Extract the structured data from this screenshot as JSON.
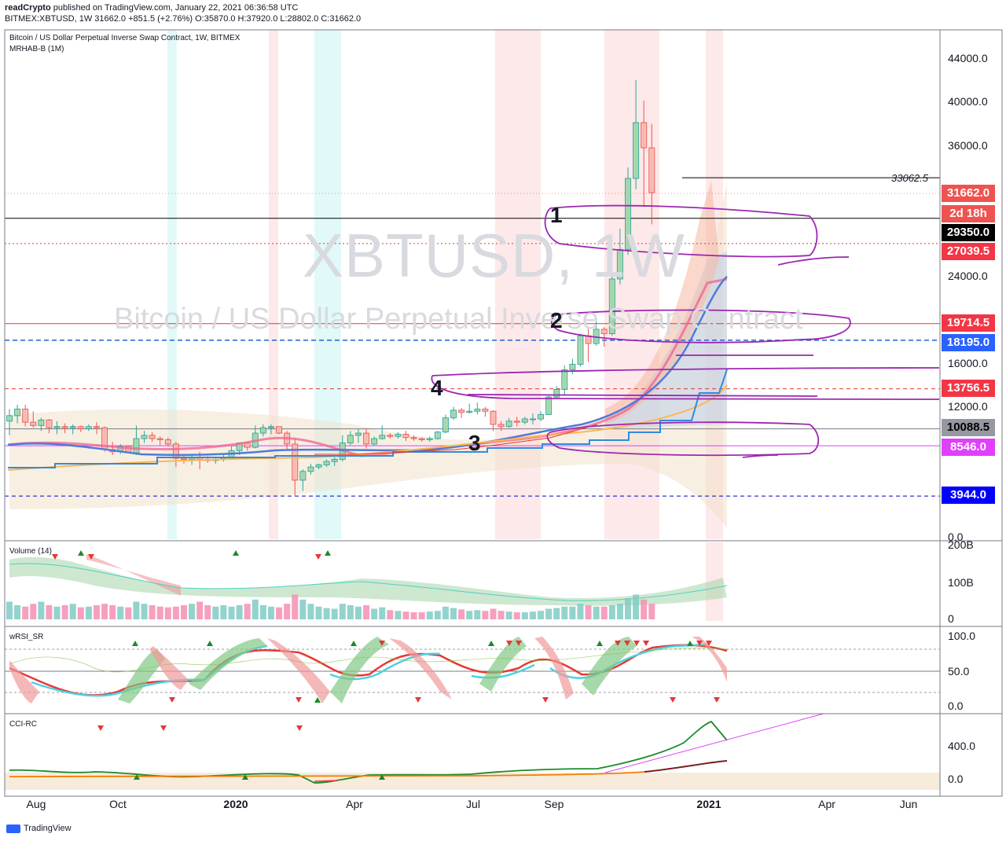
{
  "header": {
    "line1_author": "readCrypto",
    "line1_rest": " published on TradingView.com, January 22, 2021 06:36:58 UTC",
    "line2": "BITMEX:XBTUSD, 1W  31662.0  +851.5 (+2.76%)  O:35870.0  H:37920.0  L:28802.0  C:31662.0"
  },
  "chart_title": "Bitcoin / US Dollar Perpetual Inverse Swap Contract, 1W, BITMEX",
  "indicator_name": "MRHAB-B (1M)",
  "watermark": {
    "symbol": "XBTUSD, 1W",
    "description": "Bitcoin / US Dollar Perpetual Inverse Swap Contract"
  },
  "price_axis": {
    "ticks": [
      "44000.0",
      "40000.0",
      "36000.0",
      "24000.0",
      "16000.0",
      "12000.0",
      "0.0"
    ]
  },
  "price_tags": [
    {
      "text": "31662.0",
      "bg": "#ef5350",
      "fg": "#ffffff"
    },
    {
      "text": "2d 18h",
      "bg": "#ef5350",
      "fg": "#ffffff"
    },
    {
      "text": "29350.0",
      "bg": "#000000",
      "fg": "#ffffff"
    },
    {
      "text": "27039.5",
      "bg": "#f23645",
      "fg": "#ffffff"
    },
    {
      "text": "19714.5",
      "bg": "#f23645",
      "fg": "#ffffff"
    },
    {
      "text": "18195.0",
      "bg": "#2962ff",
      "fg": "#ffffff"
    },
    {
      "text": "13756.5",
      "bg": "#f23645",
      "fg": "#ffffff"
    },
    {
      "text": "10088.5",
      "bg": "#9598a1",
      "fg": "#000000"
    },
    {
      "text": "8546.0",
      "bg": "#e040fb",
      "fg": "#ffffff"
    },
    {
      "text": "3944.0",
      "bg": "#0000ff",
      "fg": "#ffffff"
    }
  ],
  "annotation_value": "33062.5",
  "zone_labels": [
    "1",
    "2",
    "3",
    "4"
  ],
  "volume_pane": {
    "title": "Volume (14)",
    "ticks": [
      "200B",
      "100B",
      "0"
    ]
  },
  "rsi_pane": {
    "title": "wRSI_SR",
    "ticks": [
      "100.0",
      "50.0",
      "0.0"
    ]
  },
  "cci_pane": {
    "title": "CCI-RC",
    "ticks": [
      "400.0",
      "0.0"
    ]
  },
  "time_axis": {
    "labels": [
      "Aug",
      "Oct",
      "2020",
      "Apr",
      "Jul",
      "Sep",
      "2021",
      "Apr",
      "Jun"
    ]
  },
  "footer": {
    "brand": "TradingView"
  },
  "colors": {
    "up": "#26a69a",
    "down": "#ef5350",
    "drawing": "#9c27b0"
  },
  "chart_data": {
    "type": "candlestick",
    "symbol": "BITMEX:XBTUSD",
    "interval": "1W",
    "last": {
      "open": 35870.0,
      "high": 37920.0,
      "low": 28802.0,
      "close": 31662.0,
      "change": 851.5,
      "change_pct": 2.76
    },
    "ylim": [
      0,
      46000
    ],
    "candles": [
      [
        10800,
        11900,
        9500,
        11300
      ],
      [
        11300,
        12300,
        10600,
        11900
      ],
      [
        11900,
        12300,
        10300,
        10700
      ],
      [
        10700,
        11700,
        10200,
        10400
      ],
      [
        10400,
        11100,
        9900,
        10900
      ],
      [
        10900,
        11000,
        9700,
        10200
      ],
      [
        10200,
        10800,
        9600,
        10300
      ],
      [
        10300,
        10600,
        9700,
        10200
      ],
      [
        10200,
        10500,
        9600,
        10300
      ],
      [
        10300,
        10400,
        9800,
        10100
      ],
      [
        10100,
        10500,
        9900,
        10300
      ],
      [
        10300,
        10700,
        9600,
        10200
      ],
      [
        10200,
        10300,
        8000,
        8200
      ],
      [
        8200,
        8900,
        7700,
        8000
      ],
      [
        8000,
        8700,
        7800,
        8500
      ],
      [
        8500,
        8400,
        7900,
        7900
      ],
      [
        7900,
        10400,
        7700,
        9200
      ],
      [
        9200,
        9900,
        8800,
        9500
      ],
      [
        9500,
        9800,
        8900,
        9200
      ],
      [
        9200,
        9400,
        8600,
        9100
      ],
      [
        9100,
        9300,
        8500,
        8700
      ],
      [
        8700,
        8900,
        6600,
        7400
      ],
      [
        7400,
        7800,
        6900,
        7300
      ],
      [
        7300,
        7700,
        6800,
        7500
      ],
      [
        7500,
        8000,
        6400,
        7300
      ],
      [
        7300,
        7600,
        7000,
        7200
      ],
      [
        7200,
        7500,
        6900,
        7300
      ],
      [
        7300,
        7700,
        7100,
        7400
      ],
      [
        7400,
        8500,
        7300,
        8100
      ],
      [
        8100,
        8800,
        7700,
        8800
      ],
      [
        8800,
        8900,
        8100,
        8400
      ],
      [
        8400,
        10400,
        8300,
        9700
      ],
      [
        9700,
        10500,
        9400,
        10200
      ],
      [
        10200,
        10500,
        9600,
        10300
      ],
      [
        10300,
        10200,
        9600,
        9700
      ],
      [
        9700,
        9900,
        8200,
        8700
      ],
      [
        8700,
        9200,
        4000,
        5400
      ],
      [
        5400,
        6400,
        4400,
        6200
      ],
      [
        6200,
        6900,
        5900,
        6600
      ],
      [
        6600,
        6900,
        6400,
        6800
      ],
      [
        6800,
        7300,
        6600,
        7100
      ],
      [
        7100,
        7500,
        6700,
        7300
      ],
      [
        7300,
        9500,
        7100,
        8800
      ],
      [
        8800,
        9900,
        8600,
        9500
      ],
      [
        9500,
        10100,
        8800,
        9700
      ],
      [
        9700,
        10100,
        8300,
        8700
      ],
      [
        8700,
        9400,
        8600,
        9200
      ],
      [
        9200,
        10400,
        9100,
        9500
      ],
      [
        9500,
        9700,
        9200,
        9400
      ],
      [
        9400,
        9800,
        9200,
        9600
      ],
      [
        9600,
        9900,
        9000,
        9300
      ],
      [
        9300,
        9500,
        9000,
        9200
      ],
      [
        9200,
        9300,
        8900,
        9100
      ],
      [
        9100,
        9400,
        8900,
        9200
      ],
      [
        9200,
        9900,
        9100,
        9800
      ],
      [
        9800,
        11400,
        9700,
        11100
      ],
      [
        11100,
        12100,
        10900,
        11800
      ],
      [
        11800,
        12000,
        11100,
        11600
      ],
      [
        11600,
        12400,
        11500,
        11700
      ],
      [
        11700,
        12500,
        11400,
        11900
      ],
      [
        11900,
        12100,
        11200,
        11700
      ],
      [
        11700,
        11800,
        9900,
        10500
      ],
      [
        10500,
        10800,
        9900,
        10300
      ],
      [
        10300,
        11100,
        10200,
        10800
      ],
      [
        10800,
        11200,
        10300,
        10700
      ],
      [
        10700,
        11200,
        10500,
        11000
      ],
      [
        11000,
        11500,
        10500,
        11000
      ],
      [
        11000,
        11700,
        10800,
        11400
      ],
      [
        11400,
        13200,
        11400,
        13000
      ],
      [
        13000,
        14000,
        12900,
        13700
      ],
      [
        13700,
        15900,
        13200,
        15500
      ],
      [
        15500,
        16500,
        15100,
        16000
      ],
      [
        16000,
        18800,
        15800,
        18600
      ],
      [
        18600,
        19400,
        16200,
        17900
      ],
      [
        17900,
        19900,
        17700,
        19200
      ],
      [
        19200,
        19400,
        17600,
        18800
      ],
      [
        18800,
        24200,
        18600,
        23800
      ],
      [
        23800,
        28400,
        23300,
        26500
      ],
      [
        26500,
        34000,
        26000,
        33000
      ],
      [
        33000,
        42000,
        32000,
        38100
      ],
      [
        38100,
        40100,
        30400,
        35800
      ],
      [
        35800,
        38000,
        28800,
        31700
      ]
    ],
    "levels": [
      33062.5,
      29350.0,
      27039.5,
      19714.5,
      18195.0,
      13756.5,
      10088.5,
      8546.0,
      3944.0
    ],
    "volume": {
      "name": "Volume (14)",
      "ylim": [
        0,
        200
      ]
    },
    "wrsi": {
      "name": "wRSI_SR",
      "ylim": [
        0,
        100
      ],
      "levels": [
        80,
        50,
        20
      ]
    },
    "cci": {
      "name": "CCI-RC",
      "levels": [
        400,
        0
      ]
    }
  }
}
